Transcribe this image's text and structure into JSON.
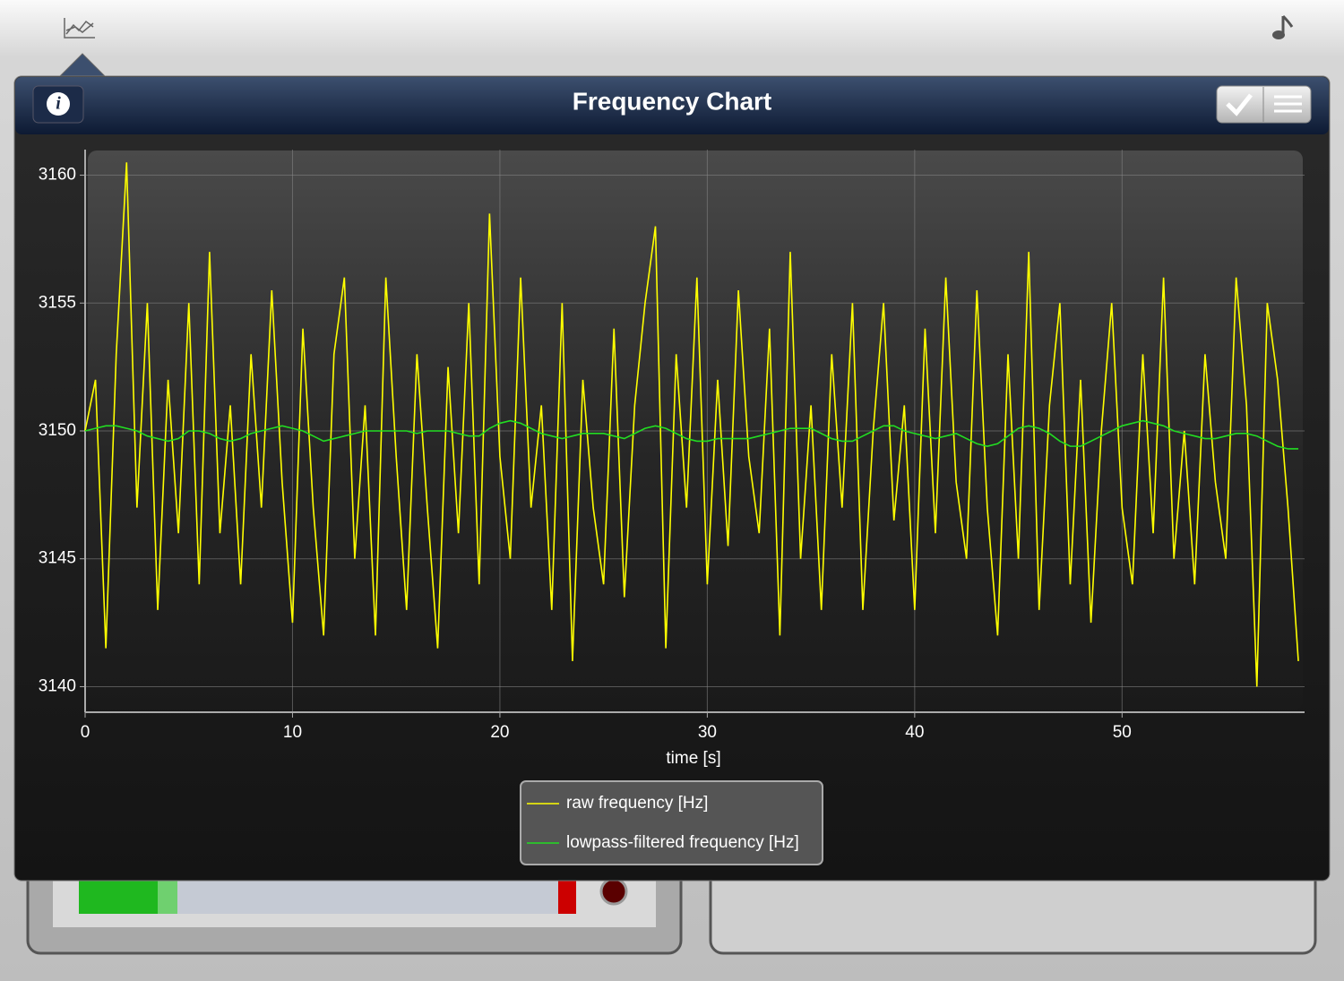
{
  "chart_data": {
    "type": "line",
    "title": "Frequency Chart",
    "x_label": "time [s]",
    "xlim": [
      0,
      58.8
    ],
    "xticks": [
      0,
      10,
      20,
      30,
      40,
      50
    ],
    "ylim": [
      3139,
      3161
    ],
    "yticks": [
      3140,
      3145,
      3150,
      3155,
      3160
    ],
    "grid": true,
    "legend": "bottom",
    "x": [
      0,
      0.5,
      1,
      1.5,
      2,
      2.5,
      3,
      3.5,
      4,
      4.5,
      5,
      5.5,
      6,
      6.5,
      7,
      7.5,
      8,
      8.5,
      9,
      9.5,
      10,
      10.5,
      11,
      11.5,
      12,
      12.5,
      13,
      13.5,
      14,
      14.5,
      15,
      15.5,
      16,
      16.5,
      17,
      17.5,
      18,
      18.5,
      19,
      19.5,
      20,
      20.5,
      21,
      21.5,
      22,
      22.5,
      23,
      23.5,
      24,
      24.5,
      25,
      25.5,
      26,
      26.5,
      27,
      27.5,
      28,
      28.5,
      29,
      29.5,
      30,
      30.5,
      31,
      31.5,
      32,
      32.5,
      33,
      33.5,
      34,
      34.5,
      35,
      35.5,
      36,
      36.5,
      37,
      37.5,
      38,
      38.5,
      39,
      39.5,
      40,
      40.5,
      41,
      41.5,
      42,
      42.5,
      43,
      43.5,
      44,
      44.5,
      45,
      45.5,
      46,
      46.5,
      47,
      47.5,
      48,
      48.5,
      49,
      49.5,
      50,
      50.5,
      51,
      51.5,
      52,
      52.5,
      53,
      53.5,
      54,
      54.5,
      55,
      55.5,
      56,
      56.5,
      57,
      57.5,
      58,
      58.5
    ],
    "series": [
      {
        "name": "raw frequency [Hz]",
        "color": "#ffff00",
        "values": [
          3150,
          3152,
          3141.5,
          3153,
          3160.5,
          3147,
          3155,
          3143,
          3152,
          3146,
          3155,
          3144,
          3157,
          3146,
          3151,
          3144,
          3153,
          3147,
          3155.5,
          3148,
          3142.5,
          3154,
          3147,
          3142,
          3153,
          3156,
          3145,
          3151,
          3142,
          3156,
          3149,
          3143,
          3153,
          3147,
          3141.5,
          3152.5,
          3146,
          3155,
          3144,
          3158.5,
          3149,
          3145,
          3156,
          3147,
          3151,
          3143,
          3155,
          3141,
          3152,
          3147,
          3144,
          3154,
          3143.5,
          3151,
          3155,
          3158,
          3141.5,
          3153,
          3147,
          3156,
          3144,
          3152,
          3145.5,
          3155.5,
          3149,
          3146,
          3154,
          3142,
          3157,
          3145,
          3151,
          3143,
          3153,
          3147,
          3155,
          3143,
          3150,
          3155,
          3146.5,
          3151,
          3143,
          3154,
          3146,
          3156,
          3148,
          3145,
          3155.5,
          3147,
          3142,
          3153,
          3145,
          3157,
          3143,
          3151,
          3155,
          3144,
          3152,
          3142.5,
          3150,
          3155,
          3147,
          3144,
          3153,
          3146,
          3156,
          3145,
          3150,
          3144,
          3153,
          3148,
          3145,
          3156,
          3151,
          3140,
          3155,
          3152,
          3147,
          3141
        ]
      },
      {
        "name": "lowpass-filtered frequency [Hz]",
        "color": "#22dd22",
        "values": [
          3150.0,
          3150.1,
          3150.2,
          3150.2,
          3150.1,
          3150.0,
          3149.8,
          3149.7,
          3149.6,
          3149.7,
          3150.0,
          3150.0,
          3149.9,
          3149.7,
          3149.6,
          3149.7,
          3149.9,
          3150.0,
          3150.1,
          3150.2,
          3150.1,
          3150.0,
          3149.8,
          3149.6,
          3149.7,
          3149.8,
          3149.9,
          3150.0,
          3150.0,
          3150.0,
          3150.0,
          3150.0,
          3149.9,
          3150.0,
          3150.0,
          3150.0,
          3149.9,
          3149.8,
          3149.8,
          3150.1,
          3150.3,
          3150.4,
          3150.3,
          3150.1,
          3149.9,
          3149.8,
          3149.7,
          3149.8,
          3149.9,
          3149.9,
          3149.9,
          3149.8,
          3149.7,
          3149.9,
          3150.1,
          3150.2,
          3150.1,
          3149.9,
          3149.7,
          3149.6,
          3149.6,
          3149.7,
          3149.7,
          3149.7,
          3149.7,
          3149.8,
          3149.9,
          3150.0,
          3150.1,
          3150.1,
          3150.1,
          3149.9,
          3149.7,
          3149.6,
          3149.6,
          3149.8,
          3150.0,
          3150.2,
          3150.2,
          3150.0,
          3149.9,
          3149.8,
          3149.7,
          3149.8,
          3149.9,
          3149.7,
          3149.5,
          3149.4,
          3149.5,
          3149.8,
          3150.1,
          3150.2,
          3150.1,
          3149.9,
          3149.6,
          3149.4,
          3149.4,
          3149.6,
          3149.8,
          3150.0,
          3150.2,
          3150.3,
          3150.4,
          3150.3,
          3150.2,
          3150.0,
          3149.9,
          3149.8,
          3149.7,
          3149.7,
          3149.8,
          3149.9,
          3149.9,
          3149.8,
          3149.6,
          3149.4,
          3149.3,
          3149.3
        ]
      }
    ]
  }
}
